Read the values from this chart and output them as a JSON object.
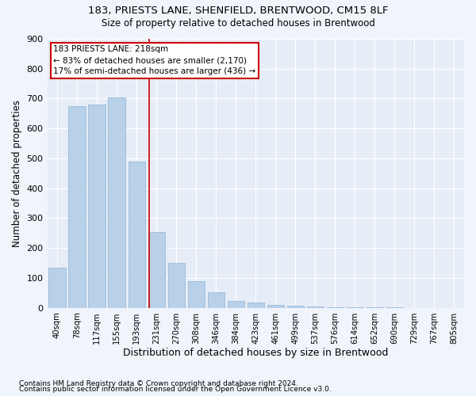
{
  "title1": "183, PRIESTS LANE, SHENFIELD, BRENTWOOD, CM15 8LF",
  "title2": "Size of property relative to detached houses in Brentwood",
  "xlabel": "Distribution of detached houses by size in Brentwood",
  "ylabel": "Number of detached properties",
  "bar_color": "#b8d0e8",
  "bar_edge_color": "#90b4d4",
  "bin_labels": [
    "40sqm",
    "78sqm",
    "117sqm",
    "155sqm",
    "193sqm",
    "231sqm",
    "270sqm",
    "308sqm",
    "346sqm",
    "384sqm",
    "423sqm",
    "461sqm",
    "499sqm",
    "537sqm",
    "576sqm",
    "614sqm",
    "652sqm",
    "690sqm",
    "729sqm",
    "767sqm",
    "805sqm"
  ],
  "bar_heights": [
    135,
    675,
    680,
    705,
    490,
    253,
    150,
    90,
    52,
    22,
    18,
    10,
    8,
    5,
    3,
    2,
    1,
    1,
    0,
    0,
    0
  ],
  "vline_x": 4.63,
  "annotation_text": "183 PRIESTS LANE: 218sqm\n← 83% of detached houses are smaller (2,170)\n17% of semi-detached houses are larger (436) →",
  "annotation_box_color": "white",
  "annotation_box_edge_color": "#cc0000",
  "vline_color": "#cc0000",
  "ylim": [
    0,
    900
  ],
  "yticks": [
    0,
    100,
    200,
    300,
    400,
    500,
    600,
    700,
    800,
    900
  ],
  "footnote1": "Contains HM Land Registry data © Crown copyright and database right 2024.",
  "footnote2": "Contains public sector information licensed under the Open Government Licence v3.0.",
  "background_color": "#f0f4fb",
  "plot_background_color": "#e6edf7"
}
